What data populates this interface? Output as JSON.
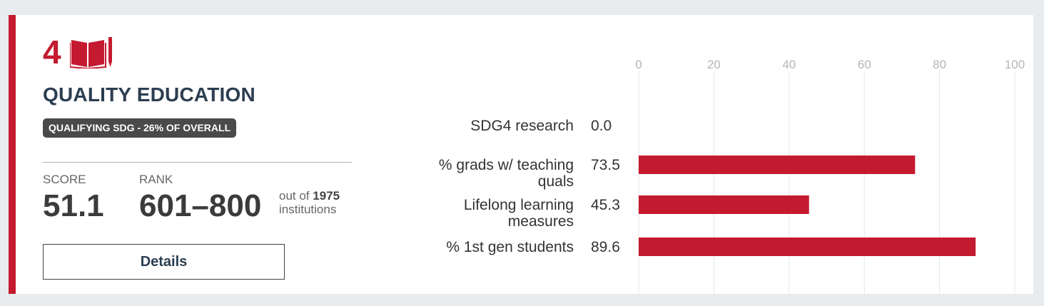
{
  "goal": {
    "number": "4",
    "title": "QUALITY EDUCATION",
    "badge": "QUALIFYING SDG - 26% OF OVERALL",
    "icon": "book-pencil-icon",
    "accent_color": "#c41a2f"
  },
  "score": {
    "label": "SCORE",
    "value": "51.1"
  },
  "rank": {
    "label": "RANK",
    "value": "601–800",
    "out_of_prefix": "out of",
    "total": "1975",
    "suffix": "institutions"
  },
  "details_button": "Details",
  "chart_data": {
    "type": "bar",
    "orientation": "horizontal",
    "xlim": [
      0,
      100
    ],
    "ticks": [
      "0",
      "20",
      "40",
      "60",
      "80",
      "100"
    ],
    "grid": true,
    "bar_color": "#c41a2f",
    "categories": [
      [
        "SDG4 research"
      ],
      [
        "% grads w/ teaching",
        "quals"
      ],
      [
        "Lifelong learning",
        "measures"
      ],
      [
        "% 1st gen students"
      ]
    ],
    "values": [
      0.0,
      73.5,
      45.3,
      89.6
    ],
    "value_labels": [
      "0.0",
      "73.5",
      "45.3",
      "89.6"
    ]
  }
}
